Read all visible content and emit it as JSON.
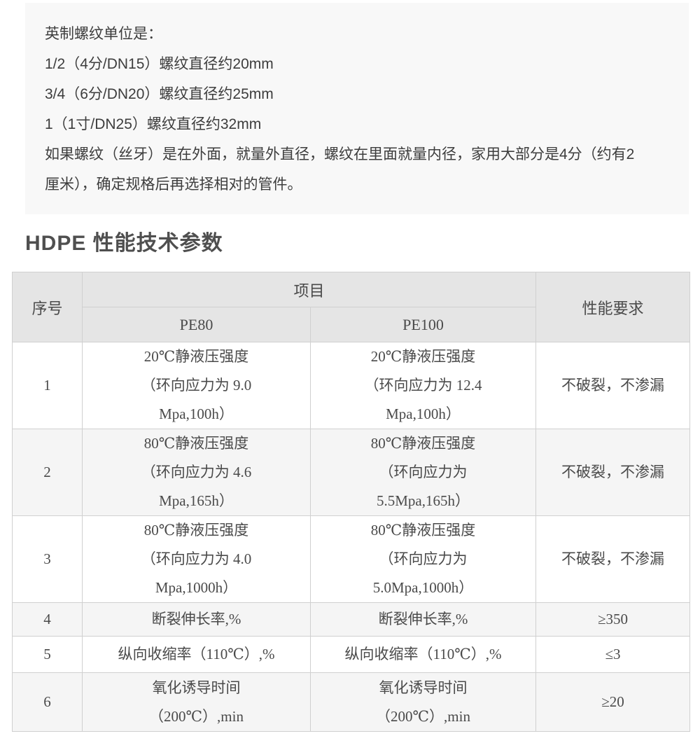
{
  "info_box": {
    "lines": [
      "英制螺纹单位是：",
      "1/2（4分/DN15）螺纹直径约20mm",
      "3/4（6分/DN20）螺纹直径约25mm",
      "1（1寸/DN25）螺纹直径约32mm",
      "如果螺纹（丝牙）是在外面，就量外直径，螺纹在里面就量内径，家用大部分是4分（约有2\n厘米），确定规格后再选择相对的管件。"
    ]
  },
  "section_title": "HDPE 性能技术参数",
  "table": {
    "header": {
      "col_index": "序号",
      "col_project": "项目",
      "col_pe80": "PE80",
      "col_pe100": "PE100",
      "col_requirement": "性能要求"
    },
    "rows": [
      {
        "no": "1",
        "pe80": "20℃静液压强度\n（环向应力为 9.0\nMpa,100h）",
        "pe100": "20℃静液压强度\n（环向应力为 12.4\nMpa,100h）",
        "requirement": "不破裂，不渗漏"
      },
      {
        "no": "2",
        "pe80": "80℃静液压强度\n（环向应力为 4.6\nMpa,165h）",
        "pe100": "80℃静液压强度\n（环向应力为\n5.5Mpa,165h）",
        "requirement": "不破裂，不渗漏"
      },
      {
        "no": "3",
        "pe80": "80℃静液压强度\n（环向应力为 4.0\nMpa,1000h）",
        "pe100": "80℃静液压强度\n（环向应力为\n5.0Mpa,1000h）",
        "requirement": "不破裂，不渗漏"
      },
      {
        "no": "4",
        "pe80": "断裂伸长率,%",
        "pe100": "断裂伸长率,%",
        "requirement": "≥350"
      },
      {
        "no": "5",
        "pe80": "纵向收缩率（110℃）,%",
        "pe100": "纵向收缩率（110℃）,%",
        "requirement": "≤3"
      },
      {
        "no": "6",
        "pe80": "氧化诱导时间\n（200℃）,min",
        "pe100": "氧化诱导时间\n（200℃）,min",
        "requirement": "≥20"
      }
    ]
  },
  "colors": {
    "info_box_bg": "#f8f8f8",
    "table_header_bg": "#e5e5e5",
    "table_stripe_bg": "#f5f5f5",
    "table_border": "#d0d0d0",
    "body_text": "#3d3d3d",
    "heading_text": "#4f4f4f"
  }
}
